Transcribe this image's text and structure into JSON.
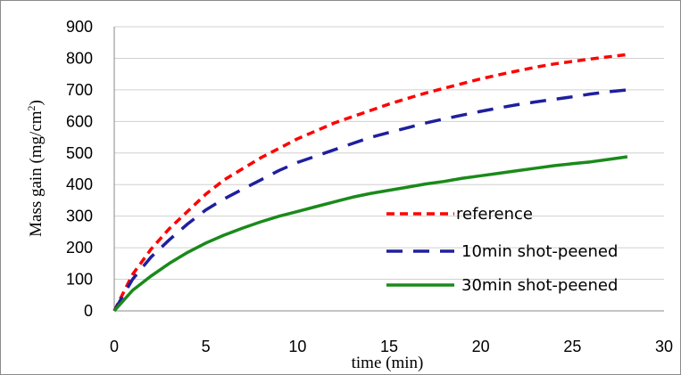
{
  "chart_data": {
    "type": "line",
    "xlabel": "time (min)",
    "ylabel_main": "Mass gain (mg/cm",
    "ylabel_sup": "2",
    "ylabel_end": ")",
    "xlim": [
      0,
      30
    ],
    "ylim": [
      0,
      900
    ],
    "xticks": [
      0,
      5,
      10,
      15,
      20,
      25,
      30
    ],
    "yticks": [
      0,
      100,
      200,
      300,
      400,
      500,
      600,
      700,
      800,
      900
    ],
    "grid": "horizontal",
    "legend_position": "bottom-right",
    "series": [
      {
        "name": "reference",
        "color": "#ff0000",
        "style": "short-dash",
        "x": [
          0,
          1,
          2,
          3,
          4,
          5,
          6,
          7,
          8,
          9,
          10,
          11,
          12,
          13,
          14,
          15,
          16,
          17,
          18,
          19,
          20,
          21,
          22,
          23,
          24,
          25,
          26,
          27,
          28
        ],
        "y": [
          0,
          115,
          195,
          260,
          315,
          370,
          415,
          450,
          485,
          515,
          545,
          570,
          595,
          615,
          635,
          655,
          673,
          690,
          705,
          720,
          735,
          748,
          760,
          772,
          782,
          790,
          798,
          805,
          812
        ]
      },
      {
        "name": "10min shot-peened",
        "color": "#1f1f9e",
        "style": "long-dash",
        "x": [
          0,
          1,
          2,
          3,
          4,
          5,
          6,
          7,
          8,
          9,
          10,
          11,
          12,
          13,
          14,
          15,
          16,
          17,
          18,
          19,
          20,
          21,
          22,
          23,
          24,
          25,
          26,
          27,
          28
        ],
        "y": [
          0,
          100,
          170,
          225,
          275,
          320,
          355,
          385,
          415,
          445,
          470,
          490,
          510,
          530,
          550,
          565,
          580,
          595,
          608,
          620,
          632,
          643,
          653,
          662,
          670,
          678,
          687,
          694,
          700
        ]
      },
      {
        "name": "30min shot-peened",
        "color": "#1a8a1a",
        "style": "solid",
        "x": [
          0,
          1,
          2,
          3,
          4,
          5,
          6,
          7,
          8,
          9,
          10,
          11,
          12,
          13,
          14,
          15,
          16,
          17,
          18,
          19,
          20,
          21,
          22,
          23,
          24,
          25,
          26,
          27,
          28
        ],
        "y": [
          0,
          65,
          110,
          150,
          185,
          215,
          240,
          262,
          282,
          300,
          315,
          330,
          345,
          360,
          372,
          382,
          392,
          402,
          410,
          420,
          428,
          436,
          444,
          452,
          460,
          466,
          472,
          480,
          488
        ]
      }
    ]
  }
}
